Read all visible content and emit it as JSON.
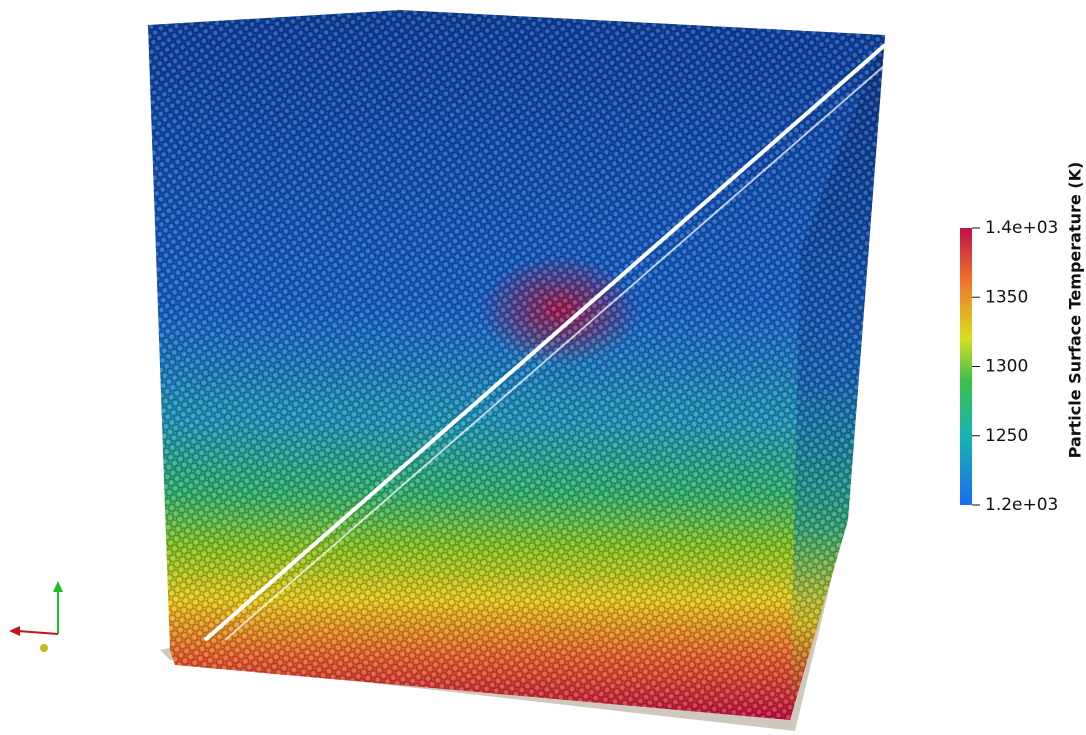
{
  "colorbar": {
    "title": "Particle Surface Temperature (K)",
    "range": [
      1200,
      1400
    ],
    "ticks": [
      {
        "value": 1400,
        "label": "1.4e+03"
      },
      1350,
      1300,
      1250,
      {
        "value": 1200,
        "label": "1.2e+03"
      }
    ]
  }
}
